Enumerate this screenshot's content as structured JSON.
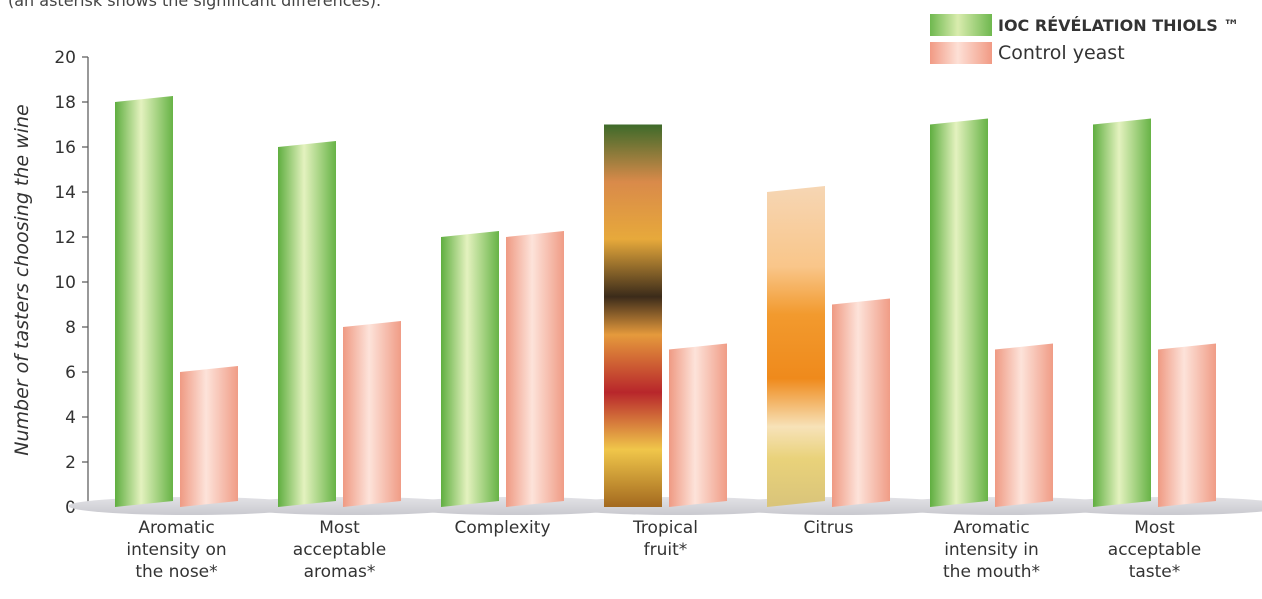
{
  "caption": "(an asterisk shows the significant differences).",
  "chart_data": {
    "type": "bar",
    "ylabel": "Number of tasters choosing the wine",
    "xlabel": "",
    "ylim": [
      0,
      20
    ],
    "yticks": [
      0,
      2,
      4,
      6,
      8,
      10,
      12,
      14,
      16,
      18,
      20
    ],
    "categories": [
      [
        "Aromatic",
        "intensity on",
        "the nose*"
      ],
      [
        "Most",
        "acceptable",
        "aromas*"
      ],
      [
        "Complexity"
      ],
      [
        "Tropical",
        "fruit*"
      ],
      [
        "Citrus"
      ],
      [
        "Aromatic",
        "intensity in",
        "the mouth*"
      ],
      [
        "Most",
        "acceptable",
        "taste*"
      ]
    ],
    "series": [
      {
        "name": "IOC RÉVÉLATION THIOLS ™",
        "color": "#7cc04f",
        "values": [
          18,
          16,
          12,
          17,
          14,
          17,
          17
        ]
      },
      {
        "name": "Control yeast",
        "color": "#f3a28c",
        "values": [
          6,
          8,
          12,
          7,
          9,
          7,
          7
        ]
      }
    ],
    "grid": false,
    "legend_position": "top-right"
  }
}
